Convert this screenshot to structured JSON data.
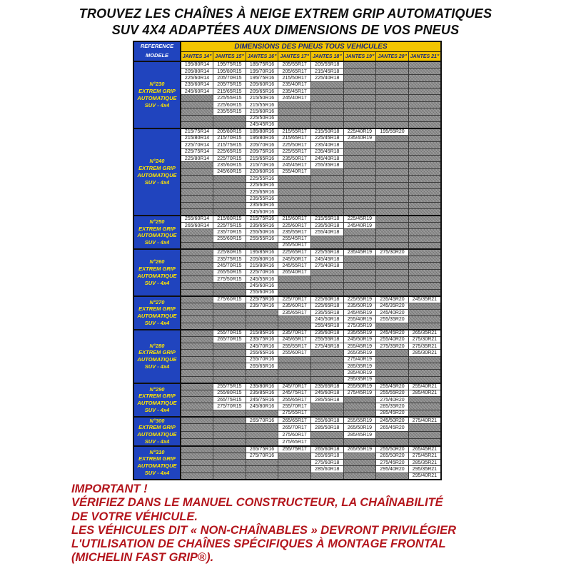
{
  "title": {
    "line1": "TROUVEZ LES CHAÎNES À NEIGE EXTREM GRIP AUTOMATIQUES",
    "line2": "SUV 4X4 ADAPTÉES AUX DIMENSIONS DE VOS PNEUS"
  },
  "colors": {
    "blue": "#2044be",
    "yellow": "#f2c400",
    "header_text_navy": "#18277d",
    "model_text_yellow": "#ffe600",
    "empty_cell_gray": "#9b9b9b",
    "footer_red": "#b4161d"
  },
  "table": {
    "ref_header_line1": "REFERENCE",
    "ref_header_line2": "MODELE",
    "main_header": "DIMENSIONS DES PNEUS TOUS VEHICULES",
    "columns": [
      "JANTES 14\"",
      "JANTES 15\"",
      "JANTES 16\"",
      "JANTES 17\"",
      "JANTES 18\"",
      "JANTES 19\"",
      "JANTES 20\"",
      "JANTES 21\""
    ],
    "groups": [
      {
        "model": [
          "N°230",
          "EXTREM GRIP",
          "AUTOMATIQUE",
          "SUV - 4x4"
        ],
        "rows": [
          [
            "195/80R14",
            "195/75R15",
            "185/75R16",
            "205/55R17",
            "205/55R18",
            "",
            "",
            ""
          ],
          [
            "205/80R14",
            "195/80R15",
            "195/70R16",
            "205/65R17",
            "215/45R18",
            "",
            "",
            ""
          ],
          [
            "225/60R14",
            "205/70R15",
            "195/75R16",
            "215/50R17",
            "225/40R18",
            "",
            "",
            ""
          ],
          [
            "235/60R14",
            "205/75R15",
            "205/60R16",
            "235/40R17",
            "",
            "",
            "",
            ""
          ],
          [
            "245/60R14",
            "215/65R15",
            "205/65R16",
            "235/45R17",
            "",
            "",
            "",
            ""
          ],
          [
            "",
            "225/55R15",
            "215/50R16",
            "245/40R17",
            "",
            "",
            "",
            ""
          ],
          [
            "",
            "225/60R15",
            "215/55R16",
            "",
            "",
            "",
            "",
            ""
          ],
          [
            "",
            "235/55R15",
            "215/60R16",
            "",
            "",
            "",
            "",
            ""
          ],
          [
            "",
            "",
            "225/50R16",
            "",
            "",
            "",
            "",
            ""
          ],
          [
            "",
            "",
            "245/45R16",
            "",
            "",
            "",
            "",
            ""
          ]
        ]
      },
      {
        "model": [
          "N°240",
          "EXTREM GRIP",
          "AUTOMATIQUE",
          "SUV - 4x4"
        ],
        "rows": [
          [
            "215/75R14",
            "205/80R15",
            "185/80R16",
            "215/55R17",
            "215/50R18",
            "225/40R19",
            "195/55R20",
            ""
          ],
          [
            "215/80R14",
            "215/70R15",
            "195/80R16",
            "215/65R17",
            "225/45R18",
            "235/40R19",
            "",
            ""
          ],
          [
            "225/70R14",
            "215/75R15",
            "205/70R16",
            "225/50R17",
            "235/40R18",
            "",
            "",
            ""
          ],
          [
            "225/75R14",
            "225/65R15",
            "205/75R16",
            "225/55R17",
            "235/45R18",
            "",
            "",
            ""
          ],
          [
            "225/80R14",
            "225/70R15",
            "215/65R16",
            "235/50R17",
            "245/40R18",
            "",
            "",
            ""
          ],
          [
            "",
            "235/60R15",
            "215/70R16",
            "245/45R17",
            "255/35R18",
            "",
            "",
            ""
          ],
          [
            "",
            "245/60R15",
            "220/60R16",
            "255/40R17",
            "",
            "",
            "",
            ""
          ],
          [
            "",
            "",
            "225/55R16",
            "",
            "",
            "",
            "",
            ""
          ],
          [
            "",
            "",
            "225/60R16",
            "",
            "",
            "",
            "",
            ""
          ],
          [
            "",
            "",
            "225/65R16",
            "",
            "",
            "",
            "",
            ""
          ],
          [
            "",
            "",
            "235/55R16",
            "",
            "",
            "",
            "",
            ""
          ],
          [
            "",
            "",
            "235/60R16",
            "",
            "",
            "",
            "",
            ""
          ],
          [
            "",
            "",
            "245/60R16",
            "",
            "",
            "",
            "",
            ""
          ]
        ]
      },
      {
        "model": [
          "N°250",
          "EXTREM GRIP",
          "AUTOMATIQUE",
          "SUV - 4x4"
        ],
        "rows": [
          [
            "255/60R14",
            "215/80R15",
            "215/75R16",
            "215/60R17",
            "215/55R18",
            "225/45R19",
            "",
            ""
          ],
          [
            "265/60R14",
            "225/75R15",
            "235/65R16",
            "225/60R17",
            "235/50R18",
            "245/40R19",
            "",
            ""
          ],
          [
            "",
            "235/70R15",
            "255/50R16",
            "235/55R17",
            "255/40R18",
            "",
            "",
            ""
          ],
          [
            "",
            "255/60R15",
            "255/55R16",
            "255/45R17",
            "",
            "",
            "",
            ""
          ],
          [
            "",
            "",
            "",
            "255/50R17",
            "",
            "",
            "",
            ""
          ]
        ]
      },
      {
        "model": [
          "N°260",
          "EXTREM GRIP",
          "AUTOMATIQUE",
          "SUV - 4x4"
        ],
        "rows": [
          [
            "",
            "225/80R15",
            "195/85R16",
            "225/65R17",
            "225/55R18",
            "235/45R19",
            "275/30R20",
            ""
          ],
          [
            "",
            "235/75R15",
            "205/80R16",
            "245/50R17",
            "245/45R18",
            "",
            "",
            ""
          ],
          [
            "",
            "245/70R15",
            "215/80R16",
            "245/55R17",
            "275/40R18",
            "",
            "",
            ""
          ],
          [
            "",
            "265/50R15",
            "225/70R16",
            "265/40R17",
            "",
            "",
            "",
            ""
          ],
          [
            "",
            "275/50R15",
            "245/55R16",
            "",
            "",
            "",
            "",
            ""
          ],
          [
            "",
            "",
            "245/60R16",
            "",
            "",
            "",
            "",
            ""
          ],
          [
            "",
            "",
            "255/60R16",
            "",
            "",
            "",
            "",
            ""
          ]
        ]
      },
      {
        "model": [
          "N°270",
          "EXTREM GRIP",
          "AUTOMATIQUE",
          "SUV - 4x4"
        ],
        "rows": [
          [
            "",
            "275/60R15",
            "225/75R16",
            "225/70R17",
            "225/60R18",
            "225/55R19",
            "235/45R20",
            "245/35R21"
          ],
          [
            "",
            "",
            "235/70R16",
            "235/60R17",
            "225/65R18",
            "235/50R19",
            "245/35R20",
            ""
          ],
          [
            "",
            "",
            "",
            "235/65R17",
            "235/55R18",
            "245/45R19",
            "245/40R20",
            ""
          ],
          [
            "",
            "",
            "",
            "",
            "245/50R18",
            "255/40R19",
            "255/35R20",
            ""
          ],
          [
            "",
            "",
            "",
            "",
            "255/45R18",
            "275/35R19",
            "",
            ""
          ]
        ]
      },
      {
        "model": [
          "N°280",
          "EXTREM GRIP",
          "AUTOMATIQUE",
          "SUV - 4x4"
        ],
        "rows": [
          [
            "",
            "255/70R15",
            "215/85R16",
            "235/70R17",
            "235/60R18",
            "235/55R19",
            "245/45R20",
            "265/35R21"
          ],
          [
            "",
            "265/70R15",
            "235/75R16",
            "245/65R17",
            "255/55R18",
            "245/50R19",
            "255/40R20",
            "275/30R21"
          ],
          [
            "",
            "",
            "245/70R16",
            "255/55R17",
            "275/45R18",
            "255/45R19",
            "275/35R20",
            "275/35R21"
          ],
          [
            "",
            "",
            "255/65R16",
            "255/60R17",
            "",
            "265/35R19",
            "",
            "285/30R21"
          ],
          [
            "",
            "",
            "255/70R16",
            "",
            "",
            "275/40R19",
            "",
            ""
          ],
          [
            "",
            "",
            "265/65R16",
            "",
            "",
            "285/35R19",
            "",
            ""
          ],
          [
            "",
            "",
            "",
            "",
            "",
            "285/40R19",
            "",
            ""
          ],
          [
            "",
            "",
            "",
            "",
            "",
            "295/35R19",
            "",
            ""
          ]
        ]
      },
      {
        "model": [
          "N°290",
          "EXTREM GRIP",
          "AUTOMATIQUE",
          "SUV - 4x4"
        ],
        "rows": [
          [
            "",
            "255/75R15",
            "235/80R16",
            "245/70R17",
            "235/65R18",
            "255/50R19",
            "255/45R20",
            "255/40R21"
          ],
          [
            "",
            "255/80R15",
            "235/85R16",
            "245/75R17",
            "245/60R18",
            "275/45R19",
            "255/55R20",
            "285/40R21"
          ],
          [
            "",
            "265/75R15",
            "245/75R16",
            "255/65R17",
            "285/55R18",
            "",
            "275/40R20",
            ""
          ],
          [
            "",
            "275/70R15",
            "245/80R16",
            "255/70R17",
            "",
            "",
            "285/35R20",
            ""
          ],
          [
            "",
            "",
            "",
            "275/55R17",
            "",
            "",
            "285/45R20",
            ""
          ]
        ]
      },
      {
        "model": [
          "N°300",
          "EXTREM GRIP",
          "AUTOMATIQUE",
          "SUV - 4x4"
        ],
        "rows": [
          [
            "",
            "",
            "265/70R16",
            "265/65R17",
            "255/60R18",
            "255/55R19",
            "245/50R20",
            "275/40R21"
          ],
          [
            "",
            "",
            "",
            "265/70R17",
            "285/50R18",
            "265/50R19",
            "265/45R20",
            ""
          ],
          [
            "",
            "",
            "",
            "275/60R17",
            "",
            "285/45R19",
            "",
            ""
          ],
          [
            "",
            "",
            "",
            "275/65R17",
            "",
            "",
            "",
            ""
          ]
        ]
      },
      {
        "model": [
          "N°310",
          "EXTREM GRIP",
          "AUTOMATIQUE",
          "SUV - 4x4"
        ],
        "rows": [
          [
            "",
            "",
            "265/75R16",
            "255/75R17",
            "265/60R18",
            "265/55R19",
            "255/50R20",
            "265/45R21"
          ],
          [
            "",
            "",
            "275/70R16",
            "",
            "265/65R18",
            "",
            "265/50R20",
            "275/45R21"
          ],
          [
            "",
            "",
            "",
            "",
            "275/60R18",
            "",
            "275/45R20",
            "285/35R21"
          ],
          [
            "",
            "",
            "",
            "",
            "285/60R18",
            "",
            "295/40R20",
            "295/35R21"
          ],
          [
            "",
            "",
            "",
            "",
            "",
            "",
            "",
            "295/40R21"
          ]
        ]
      }
    ]
  },
  "footer": {
    "heading": "IMPORTANT !",
    "line1": "VÉRIFIEZ DANS LE MANUEL CONSTRUCTEUR, LA CHAÎNABILITÉ",
    "line2": "DE VOTRE VÉHICULE.",
    "line3": "LES VÉHICULES DIT « NON-CHAÎNABLES » DEVRONT PRIVILÉGIER",
    "line4": "L'UTILISATION DE CHAÎNES SPÉCIFIQUES À MONTAGE FRONTAL",
    "line5": "(MICHELIN FAST GRIP®)."
  }
}
